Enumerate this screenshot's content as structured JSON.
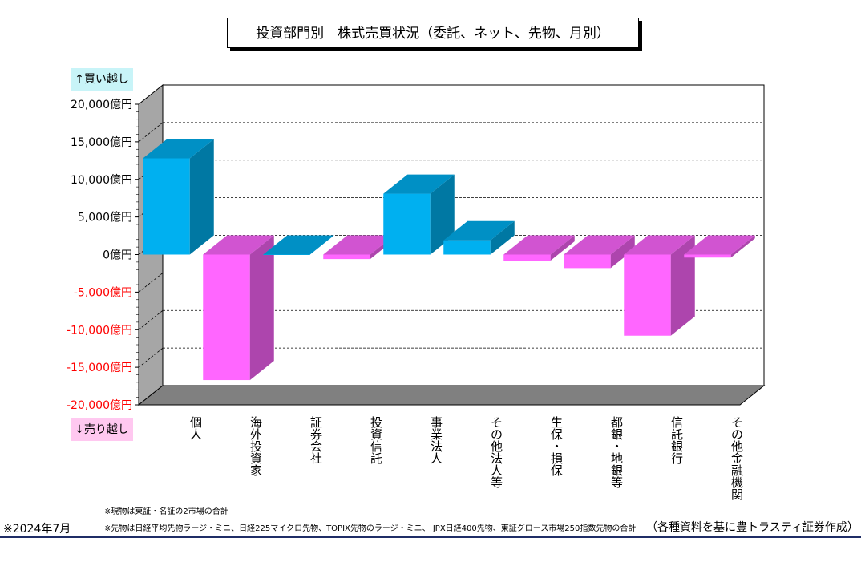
{
  "title": "投資部門別　株式売買状況（委託、ネット、先物、月別）",
  "legend_up": "↑買い越し",
  "legend_down": "↓売り越し",
  "notes": [
    "※現物は東証・名証の2市場の合計",
    "※先物は日経平均先物ラージ・ミニ、日経225マイクロ先物、TOPIX先物のラージ・ミニ、 JPX日経400先物、東証グロース市場250指数先物の合計"
  ],
  "footer": {
    "date": "※2024年7月",
    "source": "（各種資料を基に豊トラスティ証券作成）"
  },
  "colors": {
    "positive": "#00b0f0",
    "negative": "#ff66ff",
    "negative_axis_text": "#ff0000"
  },
  "chart_data": {
    "type": "bar",
    "title": "投資部門別　株式売買状況（委託、ネット、先物、月別）",
    "categories": [
      "個人",
      "海外投資家",
      "証券会社",
      "投資信託",
      "事業法人",
      "その他法人等",
      "生保・損保",
      "都銀・地銀等",
      "信託銀行",
      "その他金融機関"
    ],
    "values": [
      12800,
      -16700,
      0,
      -600,
      8100,
      1900,
      -800,
      -1800,
      -10800,
      -400
    ],
    "unit": "億円",
    "ylim": [
      -20000,
      20000
    ],
    "yticks": [
      20000,
      15000,
      10000,
      5000,
      0,
      -5000,
      -10000,
      -15000,
      -20000
    ],
    "ytick_labels": [
      "20,000億円",
      "15,000億円",
      "10,000億円",
      "5,000億円",
      "0億円",
      "-5,000億円",
      "-10,000億円",
      "-15,000億円",
      "-20,000億円"
    ],
    "grid": true
  }
}
